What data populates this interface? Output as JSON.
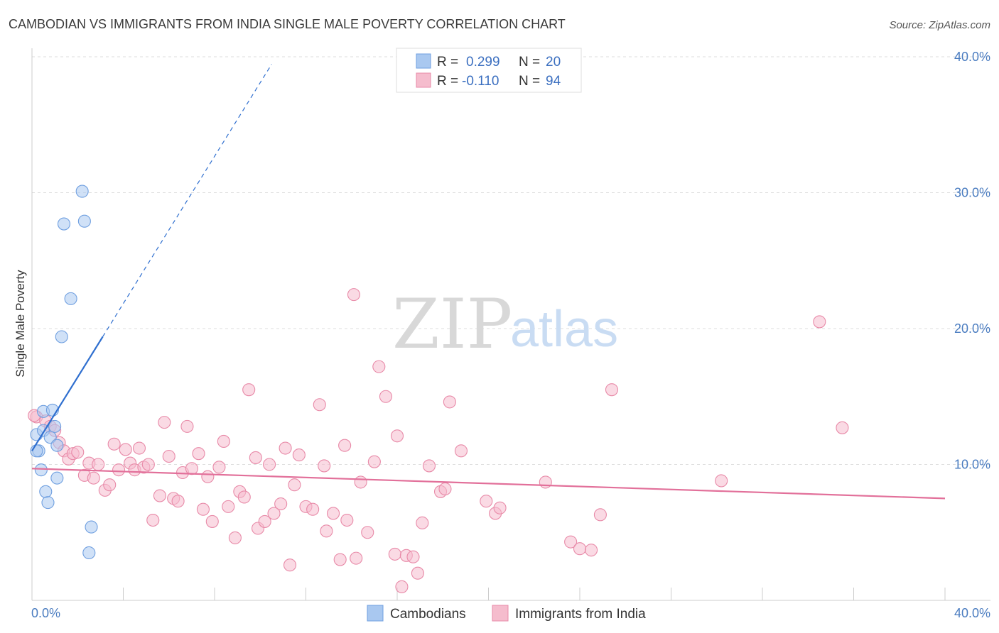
{
  "chart_data": {
    "type": "scatter",
    "title": "CAMBODIAN VS IMMIGRANTS FROM INDIA SINGLE MALE POVERTY CORRELATION CHART",
    "source": "Source: ZipAtlas.com",
    "ylabel": "Single Male Poverty",
    "xlabel": "",
    "xlim": [
      0,
      40
    ],
    "ylim": [
      0,
      40
    ],
    "x_ticks": [
      "0.0%",
      "40.0%"
    ],
    "y_ticks": [
      {
        "value": 10,
        "label": "10.0%"
      },
      {
        "value": 20,
        "label": "20.0%"
      },
      {
        "value": 30,
        "label": "30.0%"
      },
      {
        "value": 40,
        "label": "40.0%"
      }
    ],
    "grid": true,
    "watermark": {
      "zip": "ZIP",
      "atlas": "atlas"
    },
    "legend": {
      "position": "top-center",
      "entries": [
        {
          "r_label": "R =",
          "r_value": "0.299",
          "n_label": "N =",
          "n_value": "20"
        },
        {
          "r_label": "R =",
          "r_value": "-0.110",
          "n_label": "N =",
          "n_value": "94"
        }
      ]
    },
    "series": [
      {
        "name": "Cambodians",
        "color": "#6f9fe0",
        "fill": "#a9c8f0",
        "trend": {
          "x1": 0.0,
          "y1": 11.0,
          "x2": 3.1,
          "y2": 19.4,
          "dash_to_x": 10.5
        },
        "points": [
          [
            0.2,
            12.2
          ],
          [
            0.3,
            11.0
          ],
          [
            0.4,
            9.6
          ],
          [
            0.5,
            12.5
          ],
          [
            0.5,
            13.9
          ],
          [
            0.6,
            8.0
          ],
          [
            0.7,
            7.2
          ],
          [
            0.8,
            12.0
          ],
          [
            0.9,
            14.0
          ],
          [
            1.0,
            12.8
          ],
          [
            1.1,
            9.0
          ],
          [
            1.1,
            11.4
          ],
          [
            1.3,
            19.4
          ],
          [
            1.4,
            27.7
          ],
          [
            1.7,
            22.2
          ],
          [
            2.2,
            30.1
          ],
          [
            2.3,
            27.9
          ],
          [
            2.5,
            3.5
          ],
          [
            2.6,
            5.4
          ],
          [
            0.2,
            11.0
          ]
        ]
      },
      {
        "name": "Immigrants from India",
        "color": "#e88aa8",
        "fill": "#f5bccd",
        "trend": {
          "x1": 0.0,
          "y1": 9.7,
          "x2": 40.0,
          "y2": 7.5
        },
        "points": [
          [
            0.2,
            13.5
          ],
          [
            0.6,
            13.2
          ],
          [
            0.8,
            12.8
          ],
          [
            1.0,
            12.5
          ],
          [
            1.2,
            11.6
          ],
          [
            1.4,
            11.0
          ],
          [
            1.6,
            10.4
          ],
          [
            1.8,
            10.8
          ],
          [
            2.0,
            10.9
          ],
          [
            2.3,
            9.2
          ],
          [
            2.5,
            10.1
          ],
          [
            2.7,
            9.0
          ],
          [
            2.9,
            10.0
          ],
          [
            3.2,
            8.1
          ],
          [
            3.4,
            8.5
          ],
          [
            3.6,
            11.5
          ],
          [
            3.8,
            9.6
          ],
          [
            4.1,
            11.1
          ],
          [
            4.3,
            10.1
          ],
          [
            4.5,
            9.6
          ],
          [
            4.7,
            11.2
          ],
          [
            4.9,
            9.8
          ],
          [
            5.1,
            10.0
          ],
          [
            5.3,
            5.9
          ],
          [
            5.6,
            7.7
          ],
          [
            5.8,
            13.1
          ],
          [
            6.0,
            10.6
          ],
          [
            6.2,
            7.5
          ],
          [
            6.4,
            7.3
          ],
          [
            6.6,
            9.4
          ],
          [
            6.8,
            12.8
          ],
          [
            7.0,
            9.7
          ],
          [
            7.3,
            10.8
          ],
          [
            7.5,
            6.7
          ],
          [
            7.7,
            9.1
          ],
          [
            7.9,
            5.8
          ],
          [
            8.2,
            9.8
          ],
          [
            8.4,
            11.7
          ],
          [
            8.6,
            6.9
          ],
          [
            8.9,
            4.6
          ],
          [
            9.1,
            8.0
          ],
          [
            9.3,
            7.6
          ],
          [
            9.5,
            15.5
          ],
          [
            9.8,
            10.5
          ],
          [
            9.9,
            5.3
          ],
          [
            10.2,
            5.8
          ],
          [
            10.4,
            10.0
          ],
          [
            10.6,
            6.4
          ],
          [
            10.9,
            7.1
          ],
          [
            11.1,
            11.2
          ],
          [
            11.3,
            2.6
          ],
          [
            11.5,
            8.5
          ],
          [
            11.7,
            10.7
          ],
          [
            12.0,
            6.9
          ],
          [
            12.3,
            6.7
          ],
          [
            12.6,
            14.4
          ],
          [
            12.8,
            9.9
          ],
          [
            12.9,
            5.1
          ],
          [
            13.2,
            6.4
          ],
          [
            13.5,
            3.0
          ],
          [
            13.7,
            11.4
          ],
          [
            13.8,
            5.9
          ],
          [
            14.1,
            22.5
          ],
          [
            14.2,
            3.1
          ],
          [
            14.4,
            8.7
          ],
          [
            14.7,
            5.0
          ],
          [
            15.0,
            10.2
          ],
          [
            15.2,
            17.2
          ],
          [
            15.5,
            15.0
          ],
          [
            15.9,
            3.4
          ],
          [
            16.0,
            12.1
          ],
          [
            16.2,
            1.0
          ],
          [
            16.4,
            3.3
          ],
          [
            16.7,
            3.2
          ],
          [
            16.9,
            2.0
          ],
          [
            17.1,
            5.7
          ],
          [
            17.4,
            9.9
          ],
          [
            17.9,
            8.0
          ],
          [
            18.1,
            8.2
          ],
          [
            18.3,
            14.6
          ],
          [
            18.8,
            11.0
          ],
          [
            19.9,
            7.3
          ],
          [
            20.3,
            6.4
          ],
          [
            20.5,
            6.8
          ],
          [
            22.5,
            8.7
          ],
          [
            23.6,
            4.3
          ],
          [
            24.0,
            3.8
          ],
          [
            24.5,
            3.7
          ],
          [
            24.9,
            6.3
          ],
          [
            25.4,
            15.5
          ],
          [
            30.2,
            8.8
          ],
          [
            34.5,
            20.5
          ],
          [
            35.5,
            12.7
          ],
          [
            0.1,
            13.6
          ]
        ]
      }
    ]
  }
}
